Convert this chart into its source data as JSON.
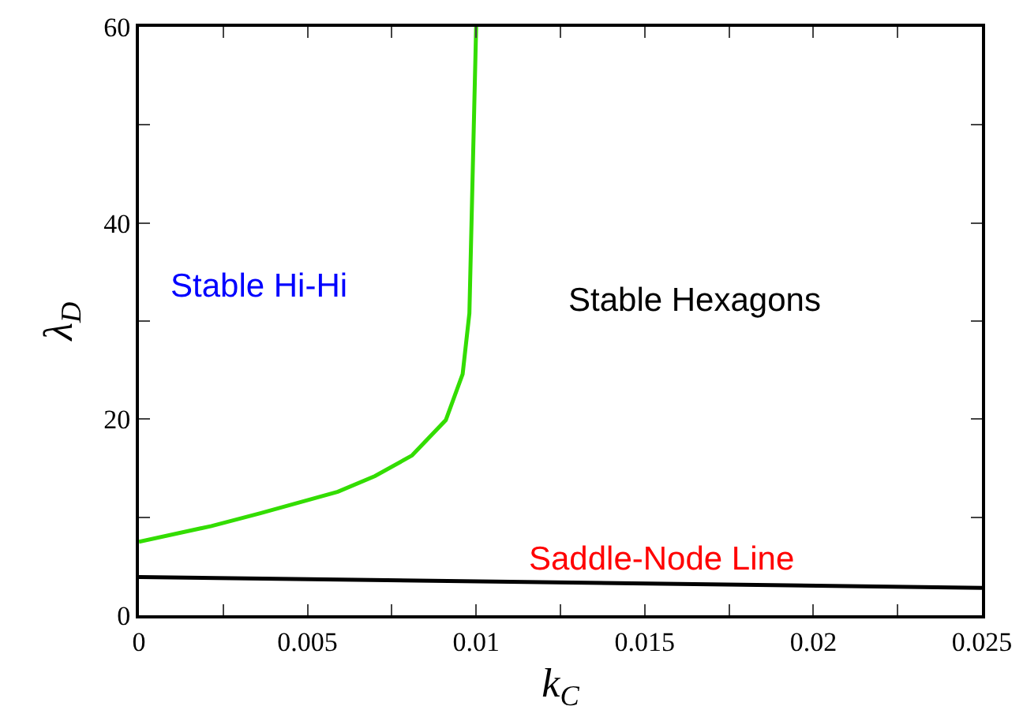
{
  "chart_data": {
    "type": "line",
    "xlabel": "k$_{C}$",
    "ylabel": "λ$_{D}$",
    "series": [
      {
        "color": "#33dd00",
        "x": [
          0,
          0.00215,
          0.0036,
          0.0059,
          0.007,
          0.0081,
          0.0091,
          0.0096,
          0.0098,
          0.01
        ],
        "values": [
          7.5,
          9.1,
          10.4,
          12.6,
          14.2,
          16.3,
          19.9,
          24.6,
          30.8,
          60
        ]
      },
      {
        "color": "#000000",
        "x": [
          0,
          0.025
        ],
        "values": [
          3.9,
          2.8
        ]
      }
    ],
    "xlim": [
      0,
      0.025
    ],
    "xticks": [
      0,
      {
        "value": 0.0025,
        "label": null
      },
      0.005,
      {
        "value": 0.0075,
        "label": null
      },
      0.01,
      {
        "value": 0.0125,
        "label": null
      },
      0.015,
      {
        "value": 0.0175,
        "label": null
      },
      0.02,
      {
        "value": 0.0225,
        "label": null
      },
      0.025
    ],
    "ylim": [
      0,
      60
    ],
    "yticks": [
      0,
      {
        "value": 10,
        "label": null
      },
      20,
      {
        "value": 30,
        "label": null
      },
      40,
      {
        "value": 50,
        "label": null
      },
      60
    ],
    "grid": false,
    "marker": "none",
    "line_style": "solid",
    "annotations": [
      "Stable Hi-Hi",
      "Stable Hexagons",
      "Saddle-Node Line"
    ]
  }
}
